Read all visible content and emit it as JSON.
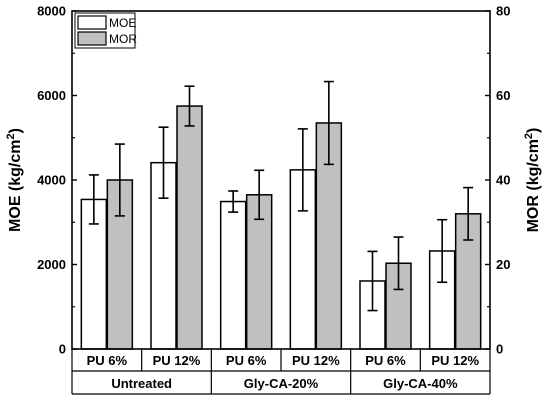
{
  "chart_data": {
    "type": "bar",
    "groups": [
      "Untreated",
      "Gly-CA-20%",
      "Gly-CA-40%"
    ],
    "subcategories": [
      "PU 6%",
      "PU 12%"
    ],
    "categories": [
      "Untreated PU 6%",
      "Untreated PU 12%",
      "Gly-CA-20% PU 6%",
      "Gly-CA-20% PU 12%",
      "Gly-CA-40% PU 6%",
      "Gly-CA-40% PU 12%"
    ],
    "series": [
      {
        "name": "MOE",
        "axis": "left",
        "color": "#ffffff",
        "values": [
          3540,
          4410,
          3490,
          4240,
          1610,
          2320
        ],
        "errors": [
          580,
          840,
          250,
          970,
          700,
          740
        ]
      },
      {
        "name": "MOR",
        "axis": "right",
        "color": "#c0c0c0",
        "values": [
          40.0,
          57.5,
          36.5,
          53.5,
          20.3,
          32.0
        ],
        "errors": [
          8.5,
          4.7,
          5.8,
          9.8,
          6.2,
          6.2
        ]
      }
    ],
    "y_left": {
      "label": "MOE (kg/cm",
      "sup": "2",
      "tail": ")",
      "ylim": [
        0,
        8000
      ],
      "ticks": [
        0,
        2000,
        4000,
        6000,
        8000
      ]
    },
    "y_right": {
      "label": "MOR (kg/cm",
      "sup": "2",
      "tail": ")",
      "ylim": [
        0,
        80
      ],
      "ticks": [
        0,
        20,
        40,
        60,
        80
      ]
    },
    "legend": {
      "placement": "top-left",
      "entries": [
        "MOE",
        "MOR"
      ]
    },
    "grid": false
  }
}
